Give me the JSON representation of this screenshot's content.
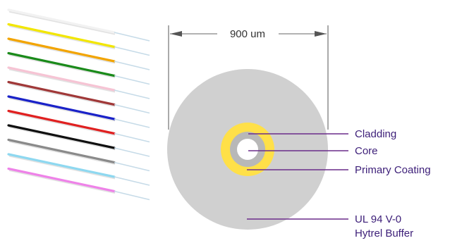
{
  "dimension": {
    "label": "900 um"
  },
  "labels": {
    "cladding": "Cladding",
    "core": "Core",
    "primary_coating": "Primary Coating",
    "buffer_line1": "UL 94 V-0",
    "buffer_line2": "Hytrel Buffer"
  },
  "colors": {
    "buffer": "#d0d0d0",
    "primary_coating": "#ffe048",
    "cladding": "#b8b8b8",
    "core": "#ffffff",
    "leader_line": "#6a2c8a",
    "fiber_tips": "#c6dbe8"
  },
  "fibers": [
    {
      "color": "white",
      "hex": "#f2f2f2"
    },
    {
      "color": "yellow",
      "hex": "#f2e600"
    },
    {
      "color": "orange",
      "hex": "#f2a400"
    },
    {
      "color": "green",
      "hex": "#1a8a1a"
    },
    {
      "color": "rose",
      "hex": "#f6c4d4"
    },
    {
      "color": "brown",
      "hex": "#a03838"
    },
    {
      "color": "blue",
      "hex": "#1a22c8"
    },
    {
      "color": "red",
      "hex": "#e02020"
    },
    {
      "color": "black",
      "hex": "#101010"
    },
    {
      "color": "slate",
      "hex": "#8a8a8a"
    },
    {
      "color": "aqua",
      "hex": "#8ed8f0"
    },
    {
      "color": "violet",
      "hex": "#ee82e8"
    }
  ]
}
